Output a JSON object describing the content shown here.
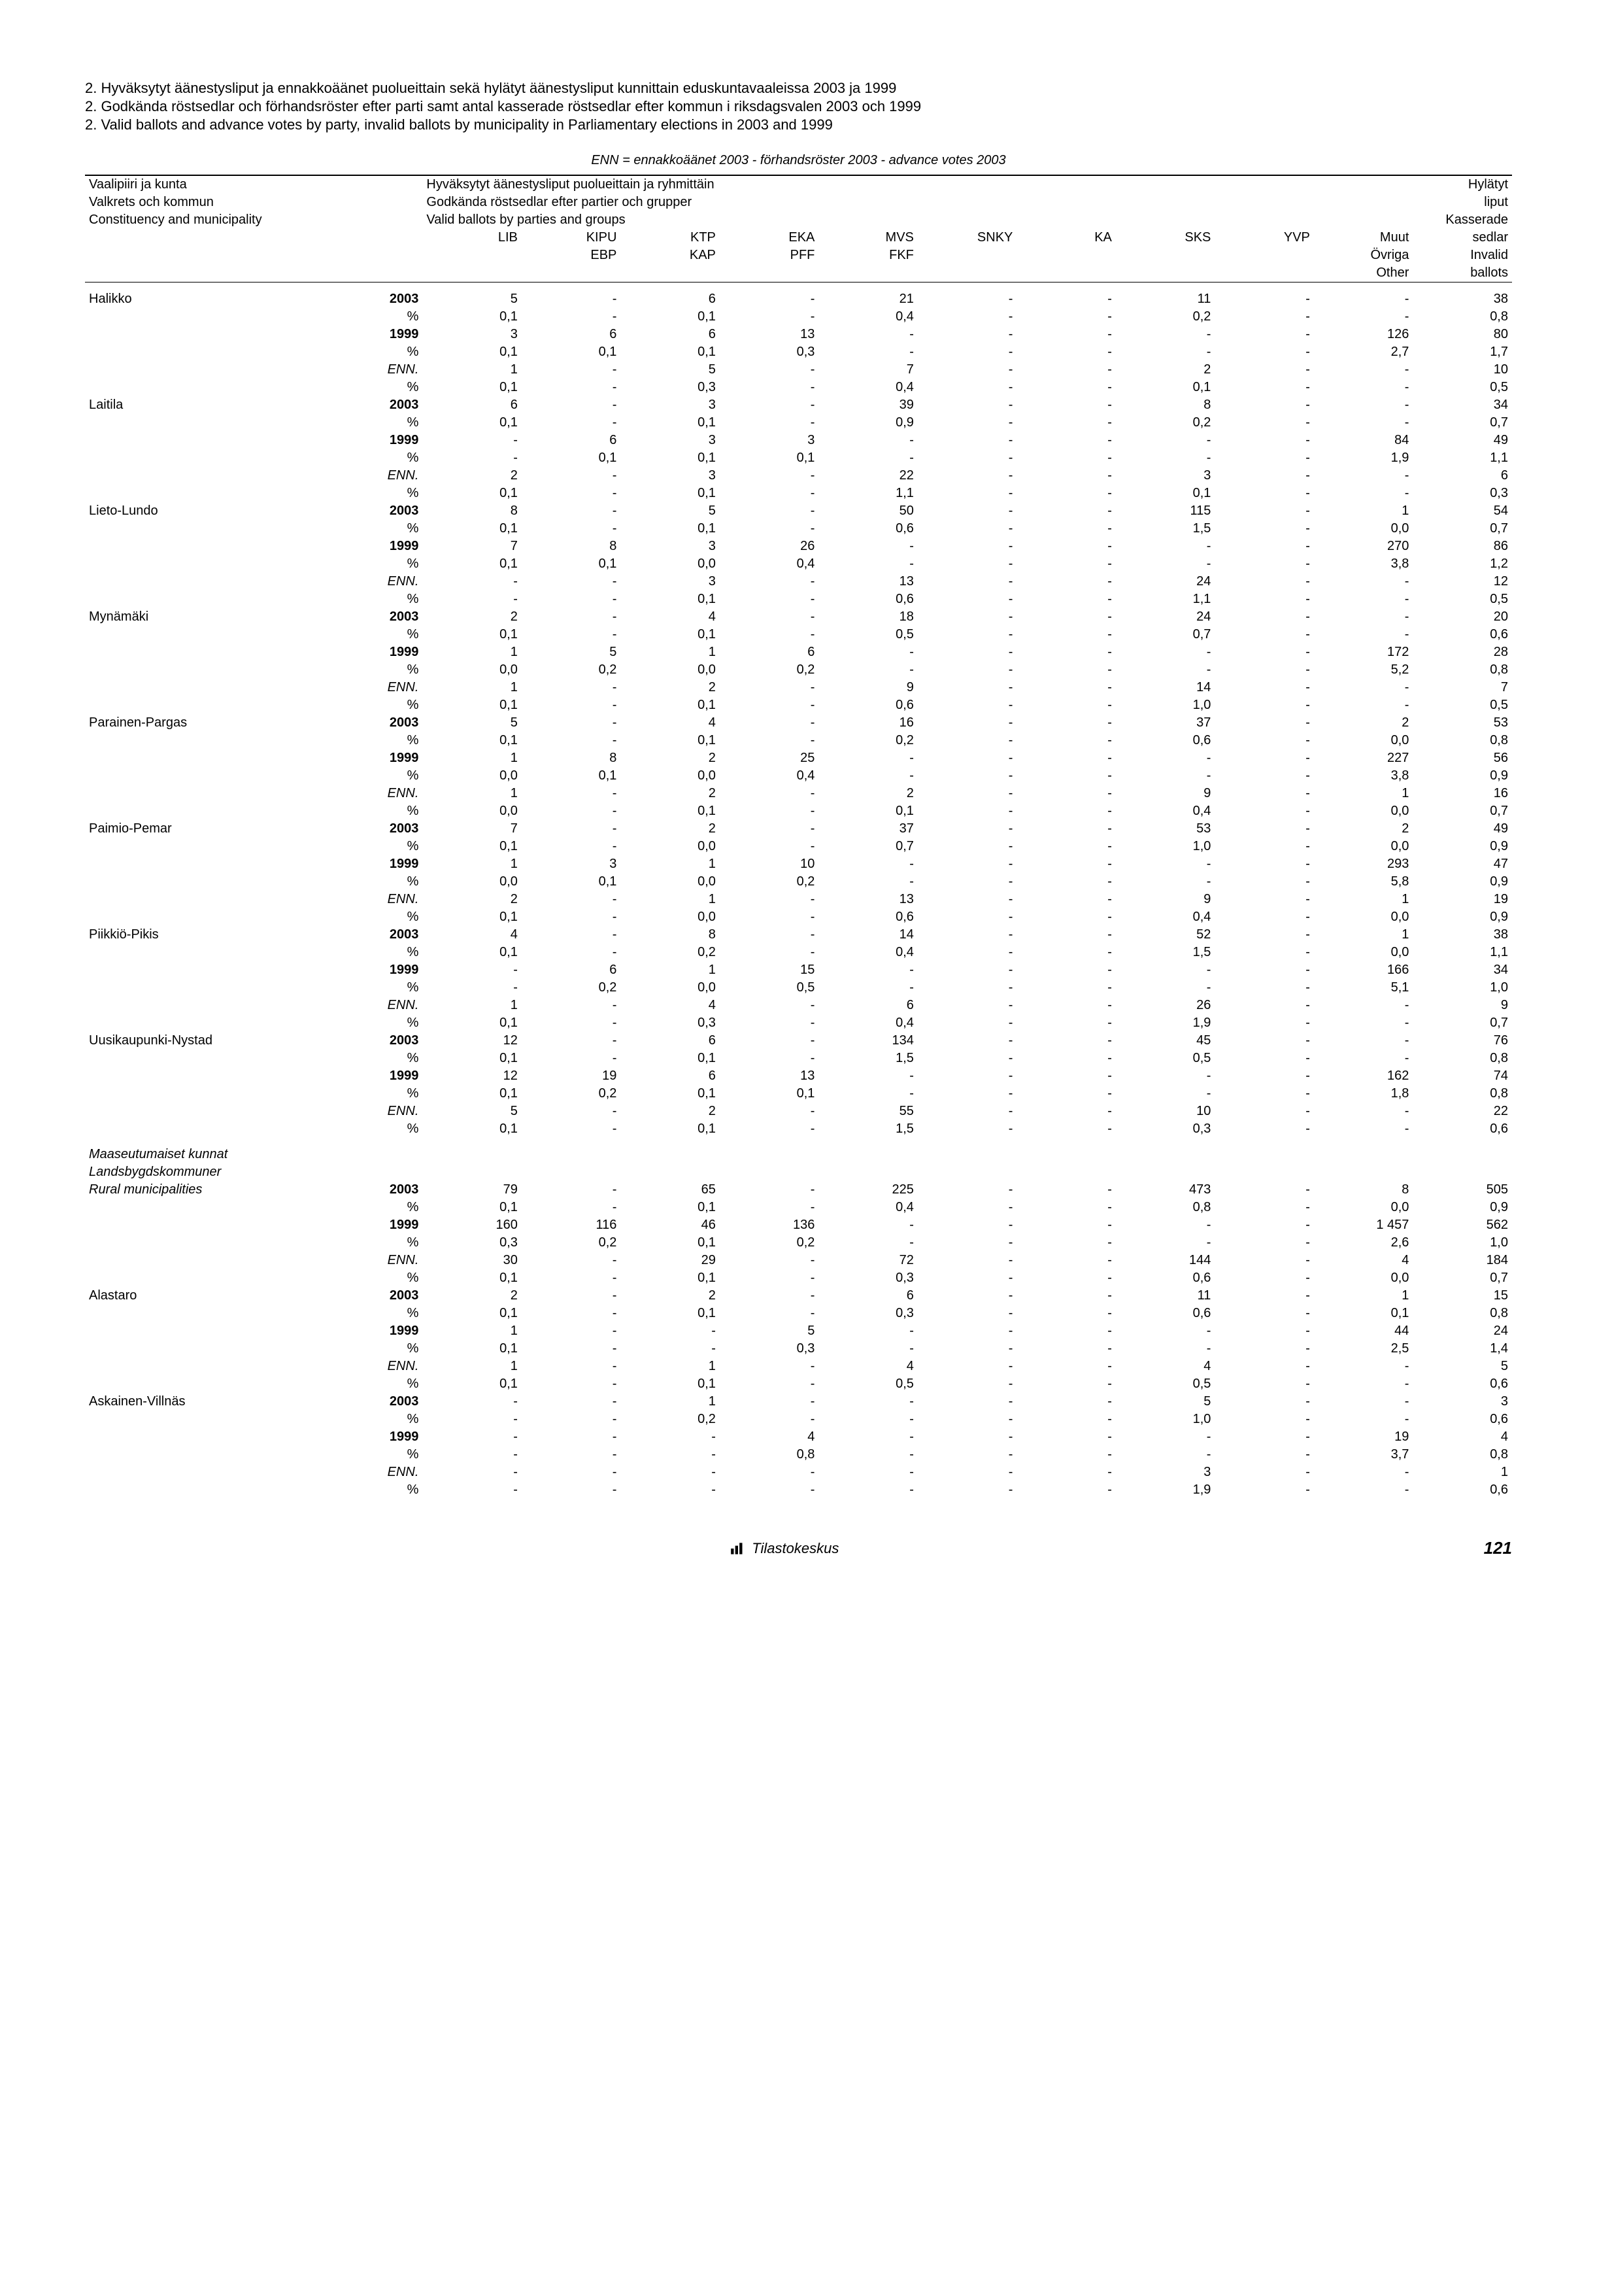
{
  "titles": {
    "t1": "2. Hyväksytyt äänestysliput ja ennakkoäänet puolueittain sekä hylätyt äänestysliput kunnittain eduskuntavaaleissa 2003 ja 1999",
    "t2": "2. Godkända röstsedlar och förhandsröster efter parti samt antal kasserade röstsedlar efter kommun i riksdagsvalen 2003 och 1999",
    "t3": "2. Valid ballots and advance votes by party, invalid ballots by municipality in Parliamentary elections in 2003 and 1999",
    "sub": "ENN = ennakkoäänet 2003 - förhandsröster 2003 - advance votes 2003"
  },
  "header": {
    "left1": "Vaalipiiri ja kunta",
    "left2": "Valkrets och kommun",
    "left3": "Constituency and municipality",
    "mid1": "Hyväksytyt äänestysliput puolueittain ja ryhmittäin",
    "mid2": "Godkända röstsedlar efter partier och grupper",
    "mid3": "Valid ballots by parties and groups",
    "right1": "Hylätyt",
    "right2": "liput",
    "right3": "Kasserade",
    "right4": "sedlar",
    "right5": "Invalid",
    "right6": "ballots",
    "cols": [
      "LIB",
      "KIPU",
      "KTP",
      "EKA",
      "MVS",
      "SNKY",
      "KA",
      "SKS",
      "YVP",
      "Muut"
    ],
    "cols2": [
      "",
      "EBP",
      "KAP",
      "PFF",
      "FKF",
      "",
      "",
      "",
      "",
      "Övriga"
    ],
    "cols3": [
      "",
      "",
      "",
      "",
      "",
      "",
      "",
      "",
      "",
      "Other"
    ]
  },
  "rows": [
    {
      "label": "Halikko",
      "y": "2003",
      "v": [
        "5",
        "-",
        "6",
        "-",
        "21",
        "-",
        "-",
        "11",
        "-",
        "-",
        "38"
      ]
    },
    {
      "label": "",
      "y": "%",
      "v": [
        "0,1",
        "-",
        "0,1",
        "-",
        "0,4",
        "-",
        "-",
        "0,2",
        "-",
        "-",
        "0,8"
      ]
    },
    {
      "label": "",
      "y": "1999",
      "v": [
        "3",
        "6",
        "6",
        "13",
        "-",
        "-",
        "-",
        "-",
        "-",
        "126",
        "80"
      ]
    },
    {
      "label": "",
      "y": "%",
      "v": [
        "0,1",
        "0,1",
        "0,1",
        "0,3",
        "-",
        "-",
        "-",
        "-",
        "-",
        "2,7",
        "1,7"
      ]
    },
    {
      "label": "",
      "y": "ENN.",
      "v": [
        "1",
        "-",
        "5",
        "-",
        "7",
        "-",
        "-",
        "2",
        "-",
        "-",
        "10"
      ]
    },
    {
      "label": "",
      "y": "%",
      "v": [
        "0,1",
        "-",
        "0,3",
        "-",
        "0,4",
        "-",
        "-",
        "0,1",
        "-",
        "-",
        "0,5"
      ]
    },
    {
      "label": "Laitila",
      "y": "2003",
      "v": [
        "6",
        "-",
        "3",
        "-",
        "39",
        "-",
        "-",
        "8",
        "-",
        "-",
        "34"
      ]
    },
    {
      "label": "",
      "y": "%",
      "v": [
        "0,1",
        "-",
        "0,1",
        "-",
        "0,9",
        "-",
        "-",
        "0,2",
        "-",
        "-",
        "0,7"
      ]
    },
    {
      "label": "",
      "y": "1999",
      "v": [
        "-",
        "6",
        "3",
        "3",
        "-",
        "-",
        "-",
        "-",
        "-",
        "84",
        "49"
      ]
    },
    {
      "label": "",
      "y": "%",
      "v": [
        "-",
        "0,1",
        "0,1",
        "0,1",
        "-",
        "-",
        "-",
        "-",
        "-",
        "1,9",
        "1,1"
      ]
    },
    {
      "label": "",
      "y": "ENN.",
      "v": [
        "2",
        "-",
        "3",
        "-",
        "22",
        "-",
        "-",
        "3",
        "-",
        "-",
        "6"
      ]
    },
    {
      "label": "",
      "y": "%",
      "v": [
        "0,1",
        "-",
        "0,1",
        "-",
        "1,1",
        "-",
        "-",
        "0,1",
        "-",
        "-",
        "0,3"
      ]
    },
    {
      "label": "Lieto-Lundo",
      "y": "2003",
      "v": [
        "8",
        "-",
        "5",
        "-",
        "50",
        "-",
        "-",
        "115",
        "-",
        "1",
        "54"
      ]
    },
    {
      "label": "",
      "y": "%",
      "v": [
        "0,1",
        "-",
        "0,1",
        "-",
        "0,6",
        "-",
        "-",
        "1,5",
        "-",
        "0,0",
        "0,7"
      ]
    },
    {
      "label": "",
      "y": "1999",
      "v": [
        "7",
        "8",
        "3",
        "26",
        "-",
        "-",
        "-",
        "-",
        "-",
        "270",
        "86"
      ]
    },
    {
      "label": "",
      "y": "%",
      "v": [
        "0,1",
        "0,1",
        "0,0",
        "0,4",
        "-",
        "-",
        "-",
        "-",
        "-",
        "3,8",
        "1,2"
      ]
    },
    {
      "label": "",
      "y": "ENN.",
      "v": [
        "-",
        "-",
        "3",
        "-",
        "13",
        "-",
        "-",
        "24",
        "-",
        "-",
        "12"
      ]
    },
    {
      "label": "",
      "y": "%",
      "v": [
        "-",
        "-",
        "0,1",
        "-",
        "0,6",
        "-",
        "-",
        "1,1",
        "-",
        "-",
        "0,5"
      ]
    },
    {
      "label": "Mynämäki",
      "y": "2003",
      "v": [
        "2",
        "-",
        "4",
        "-",
        "18",
        "-",
        "-",
        "24",
        "-",
        "-",
        "20"
      ]
    },
    {
      "label": "",
      "y": "%",
      "v": [
        "0,1",
        "-",
        "0,1",
        "-",
        "0,5",
        "-",
        "-",
        "0,7",
        "-",
        "-",
        "0,6"
      ]
    },
    {
      "label": "",
      "y": "1999",
      "v": [
        "1",
        "5",
        "1",
        "6",
        "-",
        "-",
        "-",
        "-",
        "-",
        "172",
        "28"
      ]
    },
    {
      "label": "",
      "y": "%",
      "v": [
        "0,0",
        "0,2",
        "0,0",
        "0,2",
        "-",
        "-",
        "-",
        "-",
        "-",
        "5,2",
        "0,8"
      ]
    },
    {
      "label": "",
      "y": "ENN.",
      "v": [
        "1",
        "-",
        "2",
        "-",
        "9",
        "-",
        "-",
        "14",
        "-",
        "-",
        "7"
      ]
    },
    {
      "label": "",
      "y": "%",
      "v": [
        "0,1",
        "-",
        "0,1",
        "-",
        "0,6",
        "-",
        "-",
        "1,0",
        "-",
        "-",
        "0,5"
      ]
    },
    {
      "label": "Parainen-Pargas",
      "y": "2003",
      "v": [
        "5",
        "-",
        "4",
        "-",
        "16",
        "-",
        "-",
        "37",
        "-",
        "2",
        "53"
      ]
    },
    {
      "label": "",
      "y": "%",
      "v": [
        "0,1",
        "-",
        "0,1",
        "-",
        "0,2",
        "-",
        "-",
        "0,6",
        "-",
        "0,0",
        "0,8"
      ]
    },
    {
      "label": "",
      "y": "1999",
      "v": [
        "1",
        "8",
        "2",
        "25",
        "-",
        "-",
        "-",
        "-",
        "-",
        "227",
        "56"
      ]
    },
    {
      "label": "",
      "y": "%",
      "v": [
        "0,0",
        "0,1",
        "0,0",
        "0,4",
        "-",
        "-",
        "-",
        "-",
        "-",
        "3,8",
        "0,9"
      ]
    },
    {
      "label": "",
      "y": "ENN.",
      "v": [
        "1",
        "-",
        "2",
        "-",
        "2",
        "-",
        "-",
        "9",
        "-",
        "1",
        "16"
      ]
    },
    {
      "label": "",
      "y": "%",
      "v": [
        "0,0",
        "-",
        "0,1",
        "-",
        "0,1",
        "-",
        "-",
        "0,4",
        "-",
        "0,0",
        "0,7"
      ]
    },
    {
      "label": "Paimio-Pemar",
      "y": "2003",
      "v": [
        "7",
        "-",
        "2",
        "-",
        "37",
        "-",
        "-",
        "53",
        "-",
        "2",
        "49"
      ]
    },
    {
      "label": "",
      "y": "%",
      "v": [
        "0,1",
        "-",
        "0,0",
        "-",
        "0,7",
        "-",
        "-",
        "1,0",
        "-",
        "0,0",
        "0,9"
      ]
    },
    {
      "label": "",
      "y": "1999",
      "v": [
        "1",
        "3",
        "1",
        "10",
        "-",
        "-",
        "-",
        "-",
        "-",
        "293",
        "47"
      ]
    },
    {
      "label": "",
      "y": "%",
      "v": [
        "0,0",
        "0,1",
        "0,0",
        "0,2",
        "-",
        "-",
        "-",
        "-",
        "-",
        "5,8",
        "0,9"
      ]
    },
    {
      "label": "",
      "y": "ENN.",
      "v": [
        "2",
        "-",
        "1",
        "-",
        "13",
        "-",
        "-",
        "9",
        "-",
        "1",
        "19"
      ]
    },
    {
      "label": "",
      "y": "%",
      "v": [
        "0,1",
        "-",
        "0,0",
        "-",
        "0,6",
        "-",
        "-",
        "0,4",
        "-",
        "0,0",
        "0,9"
      ]
    },
    {
      "label": "Piikkiö-Pikis",
      "y": "2003",
      "v": [
        "4",
        "-",
        "8",
        "-",
        "14",
        "-",
        "-",
        "52",
        "-",
        "1",
        "38"
      ]
    },
    {
      "label": "",
      "y": "%",
      "v": [
        "0,1",
        "-",
        "0,2",
        "-",
        "0,4",
        "-",
        "-",
        "1,5",
        "-",
        "0,0",
        "1,1"
      ]
    },
    {
      "label": "",
      "y": "1999",
      "v": [
        "-",
        "6",
        "1",
        "15",
        "-",
        "-",
        "-",
        "-",
        "-",
        "166",
        "34"
      ]
    },
    {
      "label": "",
      "y": "%",
      "v": [
        "-",
        "0,2",
        "0,0",
        "0,5",
        "-",
        "-",
        "-",
        "-",
        "-",
        "5,1",
        "1,0"
      ]
    },
    {
      "label": "",
      "y": "ENN.",
      "v": [
        "1",
        "-",
        "4",
        "-",
        "6",
        "-",
        "-",
        "26",
        "-",
        "-",
        "9"
      ]
    },
    {
      "label": "",
      "y": "%",
      "v": [
        "0,1",
        "-",
        "0,3",
        "-",
        "0,4",
        "-",
        "-",
        "1,9",
        "-",
        "-",
        "0,7"
      ]
    },
    {
      "label": "Uusikaupunki-Nystad",
      "y": "2003",
      "v": [
        "12",
        "-",
        "6",
        "-",
        "134",
        "-",
        "-",
        "45",
        "-",
        "-",
        "76"
      ]
    },
    {
      "label": "",
      "y": "%",
      "v": [
        "0,1",
        "-",
        "0,1",
        "-",
        "1,5",
        "-",
        "-",
        "0,5",
        "-",
        "-",
        "0,8"
      ]
    },
    {
      "label": "",
      "y": "1999",
      "v": [
        "12",
        "19",
        "6",
        "13",
        "-",
        "-",
        "-",
        "-",
        "-",
        "162",
        "74"
      ]
    },
    {
      "label": "",
      "y": "%",
      "v": [
        "0,1",
        "0,2",
        "0,1",
        "0,1",
        "-",
        "-",
        "-",
        "-",
        "-",
        "1,8",
        "0,8"
      ]
    },
    {
      "label": "",
      "y": "ENN.",
      "v": [
        "5",
        "-",
        "2",
        "-",
        "55",
        "-",
        "-",
        "10",
        "-",
        "-",
        "22"
      ]
    },
    {
      "label": "",
      "y": "%",
      "v": [
        "0,1",
        "-",
        "0,1",
        "-",
        "1,5",
        "-",
        "-",
        "0,3",
        "-",
        "-",
        "0,6"
      ]
    },
    {
      "label": "Maaseutumaiset kunnat",
      "gap": true,
      "y": "",
      "v": [
        "",
        "",
        "",
        "",
        "",
        "",
        "",
        "",
        "",
        "",
        ""
      ],
      "italic": true
    },
    {
      "label": "Landsbygdskommuner",
      "y": "",
      "v": [
        "",
        "",
        "",
        "",
        "",
        "",
        "",
        "",
        "",
        "",
        ""
      ],
      "italic": true
    },
    {
      "label": "Rural municipalities",
      "y": "2003",
      "v": [
        "79",
        "-",
        "65",
        "-",
        "225",
        "-",
        "-",
        "473",
        "-",
        "8",
        "505"
      ],
      "italic": true
    },
    {
      "label": "",
      "y": "%",
      "v": [
        "0,1",
        "-",
        "0,1",
        "-",
        "0,4",
        "-",
        "-",
        "0,8",
        "-",
        "0,0",
        "0,9"
      ]
    },
    {
      "label": "",
      "y": "1999",
      "v": [
        "160",
        "116",
        "46",
        "136",
        "-",
        "-",
        "-",
        "-",
        "-",
        "1 457",
        "562"
      ]
    },
    {
      "label": "",
      "y": "%",
      "v": [
        "0,3",
        "0,2",
        "0,1",
        "0,2",
        "-",
        "-",
        "-",
        "-",
        "-",
        "2,6",
        "1,0"
      ]
    },
    {
      "label": "",
      "y": "ENN.",
      "v": [
        "30",
        "-",
        "29",
        "-",
        "72",
        "-",
        "-",
        "144",
        "-",
        "4",
        "184"
      ]
    },
    {
      "label": "",
      "y": "%",
      "v": [
        "0,1",
        "-",
        "0,1",
        "-",
        "0,3",
        "-",
        "-",
        "0,6",
        "-",
        "0,0",
        "0,7"
      ]
    },
    {
      "label": "Alastaro",
      "y": "2003",
      "v": [
        "2",
        "-",
        "2",
        "-",
        "6",
        "-",
        "-",
        "11",
        "-",
        "1",
        "15"
      ]
    },
    {
      "label": "",
      "y": "%",
      "v": [
        "0,1",
        "-",
        "0,1",
        "-",
        "0,3",
        "-",
        "-",
        "0,6",
        "-",
        "0,1",
        "0,8"
      ]
    },
    {
      "label": "",
      "y": "1999",
      "v": [
        "1",
        "-",
        "-",
        "5",
        "-",
        "-",
        "-",
        "-",
        "-",
        "44",
        "24"
      ]
    },
    {
      "label": "",
      "y": "%",
      "v": [
        "0,1",
        "-",
        "-",
        "0,3",
        "-",
        "-",
        "-",
        "-",
        "-",
        "2,5",
        "1,4"
      ]
    },
    {
      "label": "",
      "y": "ENN.",
      "v": [
        "1",
        "-",
        "1",
        "-",
        "4",
        "-",
        "-",
        "4",
        "-",
        "-",
        "5"
      ]
    },
    {
      "label": "",
      "y": "%",
      "v": [
        "0,1",
        "-",
        "0,1",
        "-",
        "0,5",
        "-",
        "-",
        "0,5",
        "-",
        "-",
        "0,6"
      ]
    },
    {
      "label": "Askainen-Villnäs",
      "y": "2003",
      "v": [
        "-",
        "-",
        "1",
        "-",
        "-",
        "-",
        "-",
        "5",
        "-",
        "-",
        "3"
      ]
    },
    {
      "label": "",
      "y": "%",
      "v": [
        "-",
        "-",
        "0,2",
        "-",
        "-",
        "-",
        "-",
        "1,0",
        "-",
        "-",
        "0,6"
      ]
    },
    {
      "label": "",
      "y": "1999",
      "v": [
        "-",
        "-",
        "-",
        "4",
        "-",
        "-",
        "-",
        "-",
        "-",
        "19",
        "4"
      ]
    },
    {
      "label": "",
      "y": "%",
      "v": [
        "-",
        "-",
        "-",
        "0,8",
        "-",
        "-",
        "-",
        "-",
        "-",
        "3,7",
        "0,8"
      ]
    },
    {
      "label": "",
      "y": "ENN.",
      "v": [
        "-",
        "-",
        "-",
        "-",
        "-",
        "-",
        "-",
        "3",
        "-",
        "-",
        "1"
      ]
    },
    {
      "label": "",
      "y": "%",
      "v": [
        "-",
        "-",
        "-",
        "-",
        "-",
        "-",
        "-",
        "1,9",
        "-",
        "-",
        "0,6"
      ]
    }
  ],
  "footer": {
    "tk": "Tilastokeskus",
    "page": "121"
  }
}
